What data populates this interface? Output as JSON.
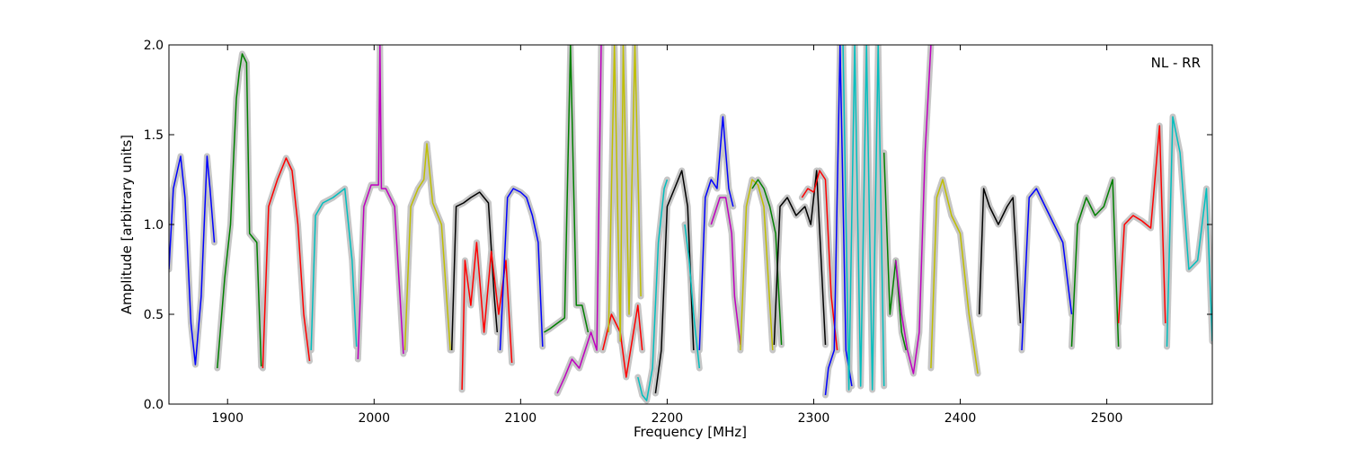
{
  "chart_data": {
    "type": "line",
    "xlabel": "Frequency [MHz]",
    "ylabel": "Amplitude [arbitrary units]",
    "xlim": [
      1860,
      2572
    ],
    "ylim": [
      0.0,
      2.0
    ],
    "xticks": [
      1900,
      2000,
      2100,
      2200,
      2300,
      2400,
      2500
    ],
    "yticks": [
      0.0,
      0.5,
      1.0,
      1.5,
      2.0
    ],
    "xtick_labels": [
      "1900",
      "2000",
      "2100",
      "2200",
      "2300",
      "2400",
      "2500"
    ],
    "ytick_labels": [
      "0.0",
      "0.5",
      "1.0",
      "1.5",
      "2.0"
    ],
    "annotation": "NL - RR",
    "grid": false,
    "reference_color": "#c0c0c0",
    "series": [
      {
        "color": "#0000ff",
        "x": [
          1860,
          1863,
          1868,
          1871,
          1875,
          1878,
          1882,
          1886,
          1888,
          1891
        ],
        "y": [
          0.75,
          1.2,
          1.38,
          1.15,
          0.45,
          0.22,
          0.6,
          1.38,
          1.2,
          0.9
        ]
      },
      {
        "color": "#008000",
        "x": [
          1893,
          1898,
          1902,
          1906,
          1908,
          1910,
          1913,
          1915,
          1920,
          1923
        ],
        "y": [
          0.2,
          0.7,
          1.0,
          1.7,
          1.85,
          1.95,
          1.9,
          0.95,
          0.9,
          0.21
        ]
      },
      {
        "color": "#ff0000",
        "x": [
          1924,
          1928,
          1934,
          1940,
          1944,
          1948,
          1952,
          1956
        ],
        "y": [
          0.2,
          1.1,
          1.25,
          1.37,
          1.3,
          1.0,
          0.5,
          0.24
        ]
      },
      {
        "color": "#00bfbf",
        "x": [
          1957,
          1960,
          1965,
          1972,
          1980,
          1985,
          1988
        ],
        "y": [
          0.3,
          1.05,
          1.12,
          1.15,
          1.2,
          0.8,
          0.32
        ]
      },
      {
        "color": "#bf00bf",
        "x": [
          1989,
          1993,
          1998,
          2003,
          2004,
          2005,
          2008,
          2014,
          2020
        ],
        "y": [
          0.25,
          1.1,
          1.22,
          1.22,
          2.0,
          1.2,
          1.2,
          1.1,
          0.28
        ]
      },
      {
        "color": "#bfbf00",
        "x": [
          2021,
          2025,
          2030,
          2034,
          2036,
          2040,
          2046,
          2052
        ],
        "y": [
          0.3,
          1.1,
          1.2,
          1.25,
          1.45,
          1.12,
          1.0,
          0.3
        ]
      },
      {
        "color": "#000000",
        "x": [
          2053,
          2056,
          2061,
          2066,
          2072,
          2078,
          2082,
          2084
        ],
        "y": [
          0.3,
          1.1,
          1.12,
          1.15,
          1.18,
          1.12,
          0.6,
          0.4
        ]
      },
      {
        "color": "#ff0000",
        "x": [
          2060,
          2062,
          2066,
          2070,
          2075,
          2080,
          2085,
          2090,
          2094
        ],
        "y": [
          0.08,
          0.8,
          0.55,
          0.9,
          0.4,
          0.85,
          0.5,
          0.8,
          0.23
        ]
      },
      {
        "color": "#0000ff",
        "x": [
          2086,
          2091,
          2095,
          2100,
          2104,
          2108,
          2112,
          2115
        ],
        "y": [
          0.3,
          1.15,
          1.2,
          1.18,
          1.15,
          1.05,
          0.9,
          0.32
        ]
      },
      {
        "color": "#008000",
        "x": [
          2116,
          2120,
          2125,
          2130,
          2134,
          2138,
          2142,
          2146
        ],
        "y": [
          0.4,
          0.42,
          0.45,
          0.48,
          2.0,
          0.55,
          0.55,
          0.4
        ]
      },
      {
        "color": "#bf00bf",
        "x": [
          2125,
          2130,
          2135,
          2140,
          2144,
          2148,
          2152,
          2155
        ],
        "y": [
          0.06,
          0.15,
          0.25,
          0.2,
          0.3,
          0.4,
          0.3,
          2.0
        ]
      },
      {
        "color": "#ff0000",
        "x": [
          2156,
          2162,
          2168,
          2172,
          2176,
          2180,
          2183
        ],
        "y": [
          0.3,
          0.5,
          0.4,
          0.15,
          0.35,
          0.55,
          0.3
        ]
      },
      {
        "color": "#bfbf00",
        "x": [
          2160,
          2164,
          2168,
          2170,
          2174,
          2178,
          2182
        ],
        "y": [
          0.4,
          2.0,
          0.35,
          2.0,
          0.5,
          2.0,
          0.6
        ]
      },
      {
        "color": "#00bfbf",
        "x": [
          2180,
          2183,
          2186,
          2190,
          2194,
          2198,
          2200
        ],
        "y": [
          0.15,
          0.05,
          0.02,
          0.2,
          0.9,
          1.2,
          1.25
        ]
      },
      {
        "color": "#000000",
        "x": [
          2192,
          2196,
          2200,
          2205,
          2210,
          2214,
          2218
        ],
        "y": [
          0.06,
          0.3,
          1.1,
          1.2,
          1.3,
          1.1,
          0.3
        ]
      },
      {
        "color": "#00bfbf",
        "x": [
          2212,
          2215,
          2218,
          2222
        ],
        "y": [
          1.0,
          0.8,
          0.5,
          0.2
        ]
      },
      {
        "color": "#0000ff",
        "x": [
          2222,
          2226,
          2230,
          2234,
          2238,
          2242,
          2245
        ],
        "y": [
          0.3,
          1.15,
          1.25,
          1.2,
          1.6,
          1.2,
          1.1
        ]
      },
      {
        "color": "#bf00bf",
        "x": [
          2230,
          2236,
          2240,
          2244,
          2246,
          2250
        ],
        "y": [
          1.0,
          1.15,
          1.15,
          0.95,
          0.6,
          0.33
        ]
      },
      {
        "color": "#bfbf00",
        "x": [
          2250,
          2254,
          2258,
          2262,
          2266,
          2272
        ],
        "y": [
          0.3,
          1.1,
          1.25,
          1.22,
          1.1,
          0.3
        ]
      },
      {
        "color": "#008000",
        "x": [
          2258,
          2262,
          2266,
          2270,
          2274,
          2278
        ],
        "y": [
          1.2,
          1.25,
          1.2,
          1.1,
          0.95,
          0.33
        ]
      },
      {
        "color": "#000000",
        "x": [
          2273,
          2277,
          2282,
          2288,
          2294,
          2298,
          2302,
          2308
        ],
        "y": [
          0.33,
          1.1,
          1.15,
          1.05,
          1.1,
          1.0,
          1.3,
          0.33
        ]
      },
      {
        "color": "#ff0000",
        "x": [
          2292,
          2296,
          2300,
          2304,
          2308,
          2312,
          2316
        ],
        "y": [
          1.15,
          1.2,
          1.18,
          1.3,
          1.25,
          0.6,
          0.3
        ]
      },
      {
        "color": "#0000ff",
        "x": [
          2308,
          2310,
          2314,
          2318,
          2322,
          2326
        ],
        "y": [
          0.05,
          0.2,
          0.3,
          2.0,
          0.3,
          0.1
        ]
      },
      {
        "color": "#00bfbf",
        "x": [
          2320,
          2324,
          2328,
          2332,
          2336,
          2340,
          2344,
          2348
        ],
        "y": [
          2.0,
          0.08,
          2.0,
          0.1,
          2.0,
          0.08,
          2.0,
          0.1
        ]
      },
      {
        "color": "#008000",
        "x": [
          2348,
          2352,
          2356,
          2360,
          2363
        ],
        "y": [
          1.4,
          0.5,
          0.8,
          0.4,
          0.3
        ]
      },
      {
        "color": "#bf00bf",
        "x": [
          2356,
          2360,
          2364,
          2368,
          2372,
          2376,
          2380
        ],
        "y": [
          0.8,
          0.5,
          0.3,
          0.17,
          0.4,
          1.4,
          2.0
        ]
      },
      {
        "color": "#bfbf00",
        "x": [
          2380,
          2384,
          2388,
          2394,
          2400,
          2406,
          2412
        ],
        "y": [
          0.2,
          1.15,
          1.25,
          1.05,
          0.95,
          0.5,
          0.17
        ]
      },
      {
        "color": "#000000",
        "x": [
          2413,
          2416,
          2420,
          2426,
          2432,
          2436,
          2441
        ],
        "y": [
          0.5,
          1.2,
          1.1,
          1.0,
          1.1,
          1.15,
          0.45
        ]
      },
      {
        "color": "#0000ff",
        "x": [
          2442,
          2447,
          2452,
          2458,
          2464,
          2470,
          2476
        ],
        "y": [
          0.3,
          1.15,
          1.2,
          1.1,
          1.0,
          0.9,
          0.5
        ]
      },
      {
        "color": "#008000",
        "x": [
          2476,
          2480,
          2486,
          2492,
          2498,
          2504,
          2508
        ],
        "y": [
          0.32,
          1.0,
          1.15,
          1.05,
          1.1,
          1.25,
          0.32
        ]
      },
      {
        "color": "#ff0000",
        "x": [
          2508,
          2512,
          2518,
          2524,
          2530,
          2536,
          2540
        ],
        "y": [
          0.45,
          1.0,
          1.05,
          1.02,
          0.98,
          1.55,
          0.45
        ]
      },
      {
        "color": "#00bfbf",
        "x": [
          2541,
          2545,
          2550,
          2556,
          2562,
          2568,
          2572
        ],
        "y": [
          0.32,
          1.6,
          1.4,
          0.75,
          0.8,
          1.2,
          0.35
        ]
      }
    ]
  }
}
